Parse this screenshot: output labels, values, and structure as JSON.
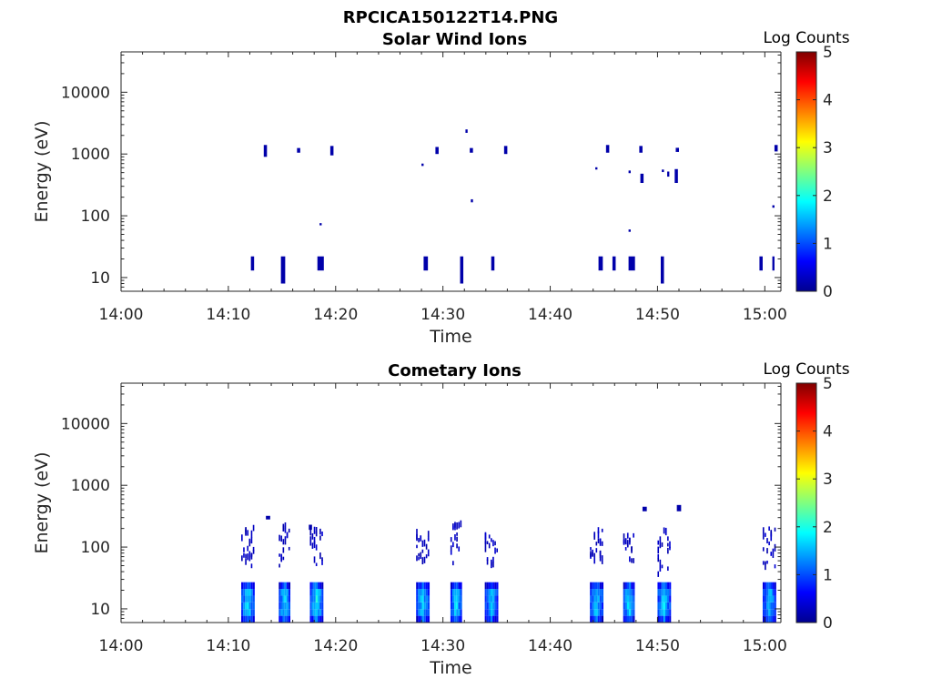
{
  "figure": {
    "title": "RPCICA150122T14.PNG"
  },
  "chart_data": [
    {
      "type": "heatmap",
      "title": "Solar Wind Ions",
      "xlabel": "Time",
      "ylabel": "Energy (eV)",
      "x_tick_labels": [
        "14:00",
        "14:10",
        "14:20",
        "14:30",
        "14:40",
        "14:50",
        "15:00"
      ],
      "x_tick_minutes": [
        0,
        10,
        20,
        30,
        40,
        50,
        60
      ],
      "xlim_minutes": [
        0,
        61.5
      ],
      "y_scale": "log",
      "y_tick_labels": [
        "10",
        "100",
        "1000",
        "10000"
      ],
      "y_tick_values": [
        10,
        100,
        1000,
        10000
      ],
      "ylim": [
        6,
        45000
      ],
      "colorbar": {
        "label": "Log Counts",
        "ticks": [
          "0",
          "1",
          "2",
          "3",
          "4",
          "5"
        ],
        "range": [
          0,
          5
        ],
        "colormap": "jet"
      },
      "cells": [
        [
          13.3,
          900,
          1400,
          0.3
        ],
        [
          16.4,
          1050,
          1250,
          0.3
        ],
        [
          19.5,
          950,
          1350,
          0.3
        ],
        [
          29.3,
          1000,
          1300,
          0.3
        ],
        [
          32.5,
          1050,
          1250,
          0.3
        ],
        [
          35.7,
          1000,
          1350,
          0.3
        ],
        [
          45.2,
          1050,
          1400,
          0.3
        ],
        [
          48.3,
          1050,
          1350,
          0.3
        ],
        [
          51.7,
          1080,
          1260,
          0.3
        ],
        [
          60.9,
          1100,
          1400,
          0.3
        ],
        [
          32.1,
          2200,
          2500,
          0.2
        ],
        [
          28.0,
          640,
          700,
          0.2
        ],
        [
          32.6,
          165,
          185,
          0.2
        ],
        [
          18.5,
          70,
          76,
          0.2
        ],
        [
          44.2,
          560,
          610,
          0.2
        ],
        [
          47.3,
          490,
          540,
          0.2
        ],
        [
          48.4,
          340,
          480,
          0.3
        ],
        [
          50.4,
          510,
          560,
          0.2
        ],
        [
          50.9,
          430,
          520,
          0.2
        ],
        [
          51.6,
          340,
          570,
          0.3
        ],
        [
          47.3,
          55,
          60,
          0.2
        ],
        [
          60.7,
          135,
          148,
          0.2
        ],
        [
          12.1,
          13,
          22,
          0.3
        ],
        [
          14.9,
          8,
          22,
          0.4
        ],
        [
          18.3,
          13,
          22,
          0.6
        ],
        [
          28.2,
          13,
          22,
          0.4
        ],
        [
          31.6,
          8,
          22,
          0.3
        ],
        [
          34.5,
          13,
          22,
          0.3
        ],
        [
          44.5,
          13,
          22,
          0.4
        ],
        [
          45.8,
          13,
          22,
          0.3
        ],
        [
          47.3,
          13,
          22,
          0.6
        ],
        [
          50.3,
          8,
          22,
          0.3
        ],
        [
          59.5,
          13,
          22,
          0.3
        ],
        [
          60.7,
          13,
          22,
          0.2
        ]
      ]
    },
    {
      "type": "heatmap",
      "title": "Cometary Ions",
      "xlabel": "Time",
      "ylabel": "Energy (eV)",
      "x_tick_labels": [
        "14:00",
        "14:10",
        "14:20",
        "14:30",
        "14:40",
        "14:50",
        "15:00"
      ],
      "x_tick_minutes": [
        0,
        10,
        20,
        30,
        40,
        50,
        60
      ],
      "xlim_minutes": [
        0,
        61.5
      ],
      "y_scale": "log",
      "y_tick_labels": [
        "10",
        "100",
        "1000",
        "10000"
      ],
      "y_tick_values": [
        10,
        100,
        1000,
        10000
      ],
      "ylim": [
        6,
        45000
      ],
      "colorbar": {
        "label": "Log Counts",
        "ticks": [
          "0",
          "1",
          "2",
          "3",
          "4",
          "5"
        ],
        "range": [
          0,
          5
        ],
        "colormap": "jet"
      },
      "bursts": [
        {
          "start": 11.2,
          "width": 1.2,
          "low_e": 6,
          "high_e": 27,
          "level": 1.5,
          "halo_low": 45,
          "halo_high": 190
        },
        {
          "start": 14.7,
          "width": 1.1,
          "low_e": 6,
          "high_e": 27,
          "level": 1.5,
          "halo_low": 40,
          "halo_high": 200
        },
        {
          "start": 17.6,
          "width": 1.3,
          "low_e": 6,
          "high_e": 27,
          "level": 1.6,
          "halo_low": 45,
          "halo_high": 210
        },
        {
          "start": 27.5,
          "width": 1.2,
          "low_e": 6,
          "high_e": 27,
          "level": 1.4,
          "halo_low": 50,
          "halo_high": 170
        },
        {
          "start": 30.7,
          "width": 1.1,
          "low_e": 6,
          "high_e": 27,
          "level": 1.5,
          "halo_low": 50,
          "halo_high": 220
        },
        {
          "start": 33.9,
          "width": 1.2,
          "low_e": 6,
          "high_e": 27,
          "level": 1.4,
          "halo_low": 45,
          "halo_high": 160
        },
        {
          "start": 43.7,
          "width": 1.2,
          "low_e": 6,
          "high_e": 27,
          "level": 1.4,
          "halo_low": 45,
          "halo_high": 190
        },
        {
          "start": 46.8,
          "width": 1.1,
          "low_e": 6,
          "high_e": 27,
          "level": 1.5,
          "halo_low": 50,
          "halo_high": 170
        },
        {
          "start": 50.0,
          "width": 1.2,
          "low_e": 6,
          "high_e": 27,
          "level": 1.5,
          "halo_low": 30,
          "halo_high": 180
        },
        {
          "start": 59.8,
          "width": 1.3,
          "low_e": 6,
          "high_e": 27,
          "level": 1.4,
          "halo_low": 40,
          "halo_high": 190
        }
      ],
      "cells": [
        [
          13.5,
          280,
          320,
          0.4
        ],
        [
          48.6,
          380,
          450,
          0.4
        ],
        [
          51.8,
          380,
          480,
          0.4
        ],
        [
          17.5,
          190,
          230,
          0.3
        ]
      ]
    }
  ]
}
